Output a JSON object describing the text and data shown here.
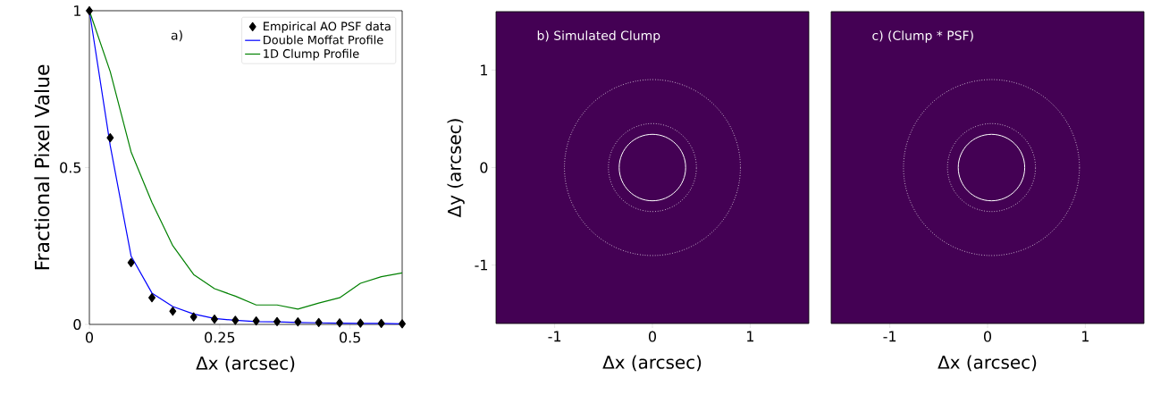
{
  "chart_data": [
    {
      "type": "line",
      "xlabel": "Δx (arcsec)",
      "ylabel": "Fractional Pixel Value",
      "annotations": [
        "a)"
      ],
      "x": [
        0,
        0.04,
        0.08,
        0.12,
        0.16,
        0.2,
        0.24,
        0.28,
        0.32,
        0.36,
        0.4,
        0.44,
        0.48,
        0.52,
        0.56,
        0.6
      ],
      "series": [
        {
          "name": "Empirical AO PSF data",
          "type": "scatter",
          "marker": "diamond",
          "color": "#000000",
          "values": [
            1,
            0.595,
            0.197,
            0.085,
            0.042,
            0.024,
            0.017,
            0.013,
            0.011,
            0.009,
            0.008,
            0.006,
            0.005,
            0.004,
            0.003,
            0.002
          ]
        },
        {
          "name": "Double Moffat Profile",
          "color": "#0000ff",
          "values": [
            1,
            0.57,
            0.218,
            0.1,
            0.057,
            0.033,
            0.019,
            0.013,
            0.009,
            0.008,
            0.006,
            0.005,
            0.004,
            0.003,
            0.003,
            0.002
          ]
        },
        {
          "name": "1D Clump Profile",
          "color": "#008000",
          "values": [
            1,
            0.806,
            0.55,
            0.389,
            0.251,
            0.159,
            0.114,
            0.09,
            0.062,
            0.062,
            0.049,
            0.068,
            0.085,
            0.131,
            0.152,
            0.164
          ]
        }
      ],
      "xlim": [
        0,
        0.6
      ],
      "ylim": [
        0,
        1
      ],
      "xticks": [
        0,
        0.25,
        0.5
      ],
      "yticks": [
        0,
        0.5,
        1
      ],
      "legend": "top right"
    },
    {
      "type": "scatter",
      "xlabel": "Δx (arcsec)",
      "ylabel": "Δy (arcsec)",
      "annotations": [
        "b)  Simulated Clump"
      ],
      "xlim": [
        -1.6,
        1.6
      ],
      "ylim": [
        -1.6,
        1.6
      ],
      "xticks": [
        -1,
        0,
        1
      ],
      "yticks": [
        -1,
        0,
        1
      ]
    },
    {
      "type": "scatter",
      "xlabel": "Δx (arcsec)",
      "annotations": [
        "c)  (Clump * PSF)"
      ],
      "xlim": [
        -1.6,
        1.6
      ],
      "ylim": [
        -1.6,
        1.6
      ],
      "xticks": [
        -1,
        0,
        1
      ],
      "tick_labels": "x"
    }
  ]
}
